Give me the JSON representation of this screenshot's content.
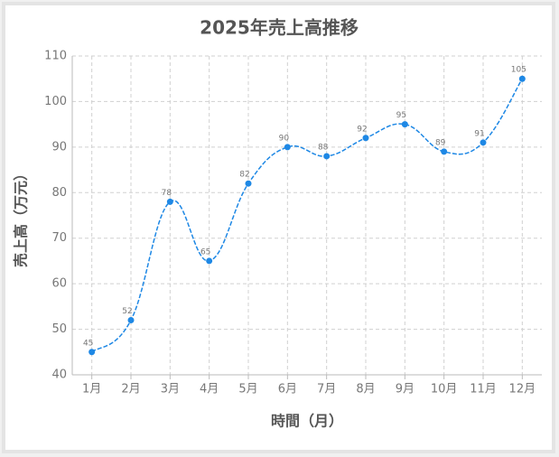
{
  "chart_data": {
    "type": "line",
    "title": "2025年売上高推移",
    "x_label": "時間（月）",
    "y_label": "売上高（万元）",
    "categories": [
      "1月",
      "2月",
      "3月",
      "4月",
      "5月",
      "6月",
      "7月",
      "8月",
      "9月",
      "10月",
      "11月",
      "12月"
    ],
    "series": [
      {
        "name": "売上高",
        "color": "#1e88e5",
        "values": [
          45,
          52,
          78,
          65,
          82,
          90,
          88,
          92,
          95,
          89,
          91,
          105
        ]
      }
    ],
    "ylim": [
      40,
      110
    ],
    "yticks": [
      40,
      50,
      60,
      70,
      80,
      90,
      100,
      110
    ],
    "grid": true
  }
}
